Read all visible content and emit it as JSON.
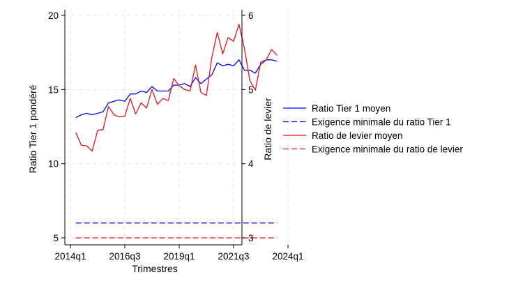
{
  "chart_data": {
    "type": "line",
    "xlabel": "Trimestres",
    "ylabel_left": "Ratio Tier 1 pondéré",
    "ylabel_right": "Ratio de levier",
    "x_ticks": [
      "2014q1",
      "2016q3",
      "2019q1",
      "2021q3",
      "2024q1"
    ],
    "y_left_ticks": [
      "5",
      "10",
      "15",
      "20"
    ],
    "y_right_ticks": [
      "3",
      "4",
      "5",
      "6"
    ],
    "y_left_lim": [
      5,
      20
    ],
    "y_right_lim": [
      3,
      6
    ],
    "grid": true,
    "legend_position": "right",
    "x": [
      "2014q2",
      "2014q3",
      "2014q4",
      "2015q1",
      "2015q2",
      "2015q3",
      "2015q4",
      "2016q1",
      "2016q2",
      "2016q3",
      "2016q4",
      "2017q1",
      "2017q2",
      "2017q3",
      "2017q4",
      "2018q1",
      "2018q2",
      "2018q3",
      "2018q4",
      "2019q1",
      "2019q2",
      "2019q3",
      "2019q4",
      "2020q1",
      "2020q2",
      "2020q3",
      "2020q4",
      "2021q1",
      "2021q2",
      "2021q3",
      "2021q4",
      "2022q1",
      "2022q2",
      "2022q3",
      "2022q4",
      "2023q1",
      "2023q2",
      "2023q3"
    ],
    "series": [
      {
        "name": "Ratio Tier 1 moyen",
        "axis": "left",
        "style": "solid",
        "color": "#0000ff",
        "values": [
          13.1,
          13.3,
          13.4,
          13.3,
          13.4,
          13.5,
          14.1,
          14.2,
          14.3,
          14.2,
          14.7,
          14.7,
          14.9,
          14.8,
          15.2,
          14.9,
          14.9,
          14.9,
          15.3,
          15.3,
          15.4,
          15.2,
          15.8,
          15.4,
          15.7,
          16.0,
          16.8,
          16.6,
          16.7,
          16.6,
          17.0,
          16.3,
          16.3,
          16.1,
          16.7,
          17.0,
          17.0,
          16.9
        ]
      },
      {
        "name": "Exigence minimale du ratio Tier 1",
        "axis": "left",
        "style": "dashed",
        "color": "#0000ff",
        "values": [
          6,
          6,
          6,
          6,
          6,
          6,
          6,
          6,
          6,
          6,
          6,
          6,
          6,
          6,
          6,
          6,
          6,
          6,
          6,
          6,
          6,
          6,
          6,
          6,
          6,
          6,
          6,
          6,
          6,
          6,
          6,
          6,
          6,
          6,
          6,
          6,
          6,
          6
        ]
      },
      {
        "name": "Ratio de levier moyen",
        "axis": "right",
        "style": "solid",
        "color": "#e8141b",
        "values": [
          4.42,
          4.25,
          4.24,
          4.17,
          4.45,
          4.46,
          4.77,
          4.66,
          4.63,
          4.64,
          4.88,
          4.67,
          4.82,
          4.75,
          5.0,
          4.8,
          4.88,
          4.85,
          5.15,
          5.05,
          5.0,
          4.98,
          5.33,
          4.96,
          4.92,
          5.43,
          5.77,
          5.48,
          5.7,
          5.65,
          5.88,
          5.55,
          5.12,
          4.99,
          5.37,
          5.4,
          5.54,
          5.46
        ]
      },
      {
        "name": "Exigence minimale du ratio de levier",
        "axis": "right",
        "style": "dashed",
        "color": "#e8141b",
        "values": [
          3,
          3,
          3,
          3,
          3,
          3,
          3,
          3,
          3,
          3,
          3,
          3,
          3,
          3,
          3,
          3,
          3,
          3,
          3,
          3,
          3,
          3,
          3,
          3,
          3,
          3,
          3,
          3,
          3,
          3,
          3,
          3,
          3,
          3,
          3,
          3,
          3,
          3
        ]
      }
    ]
  }
}
